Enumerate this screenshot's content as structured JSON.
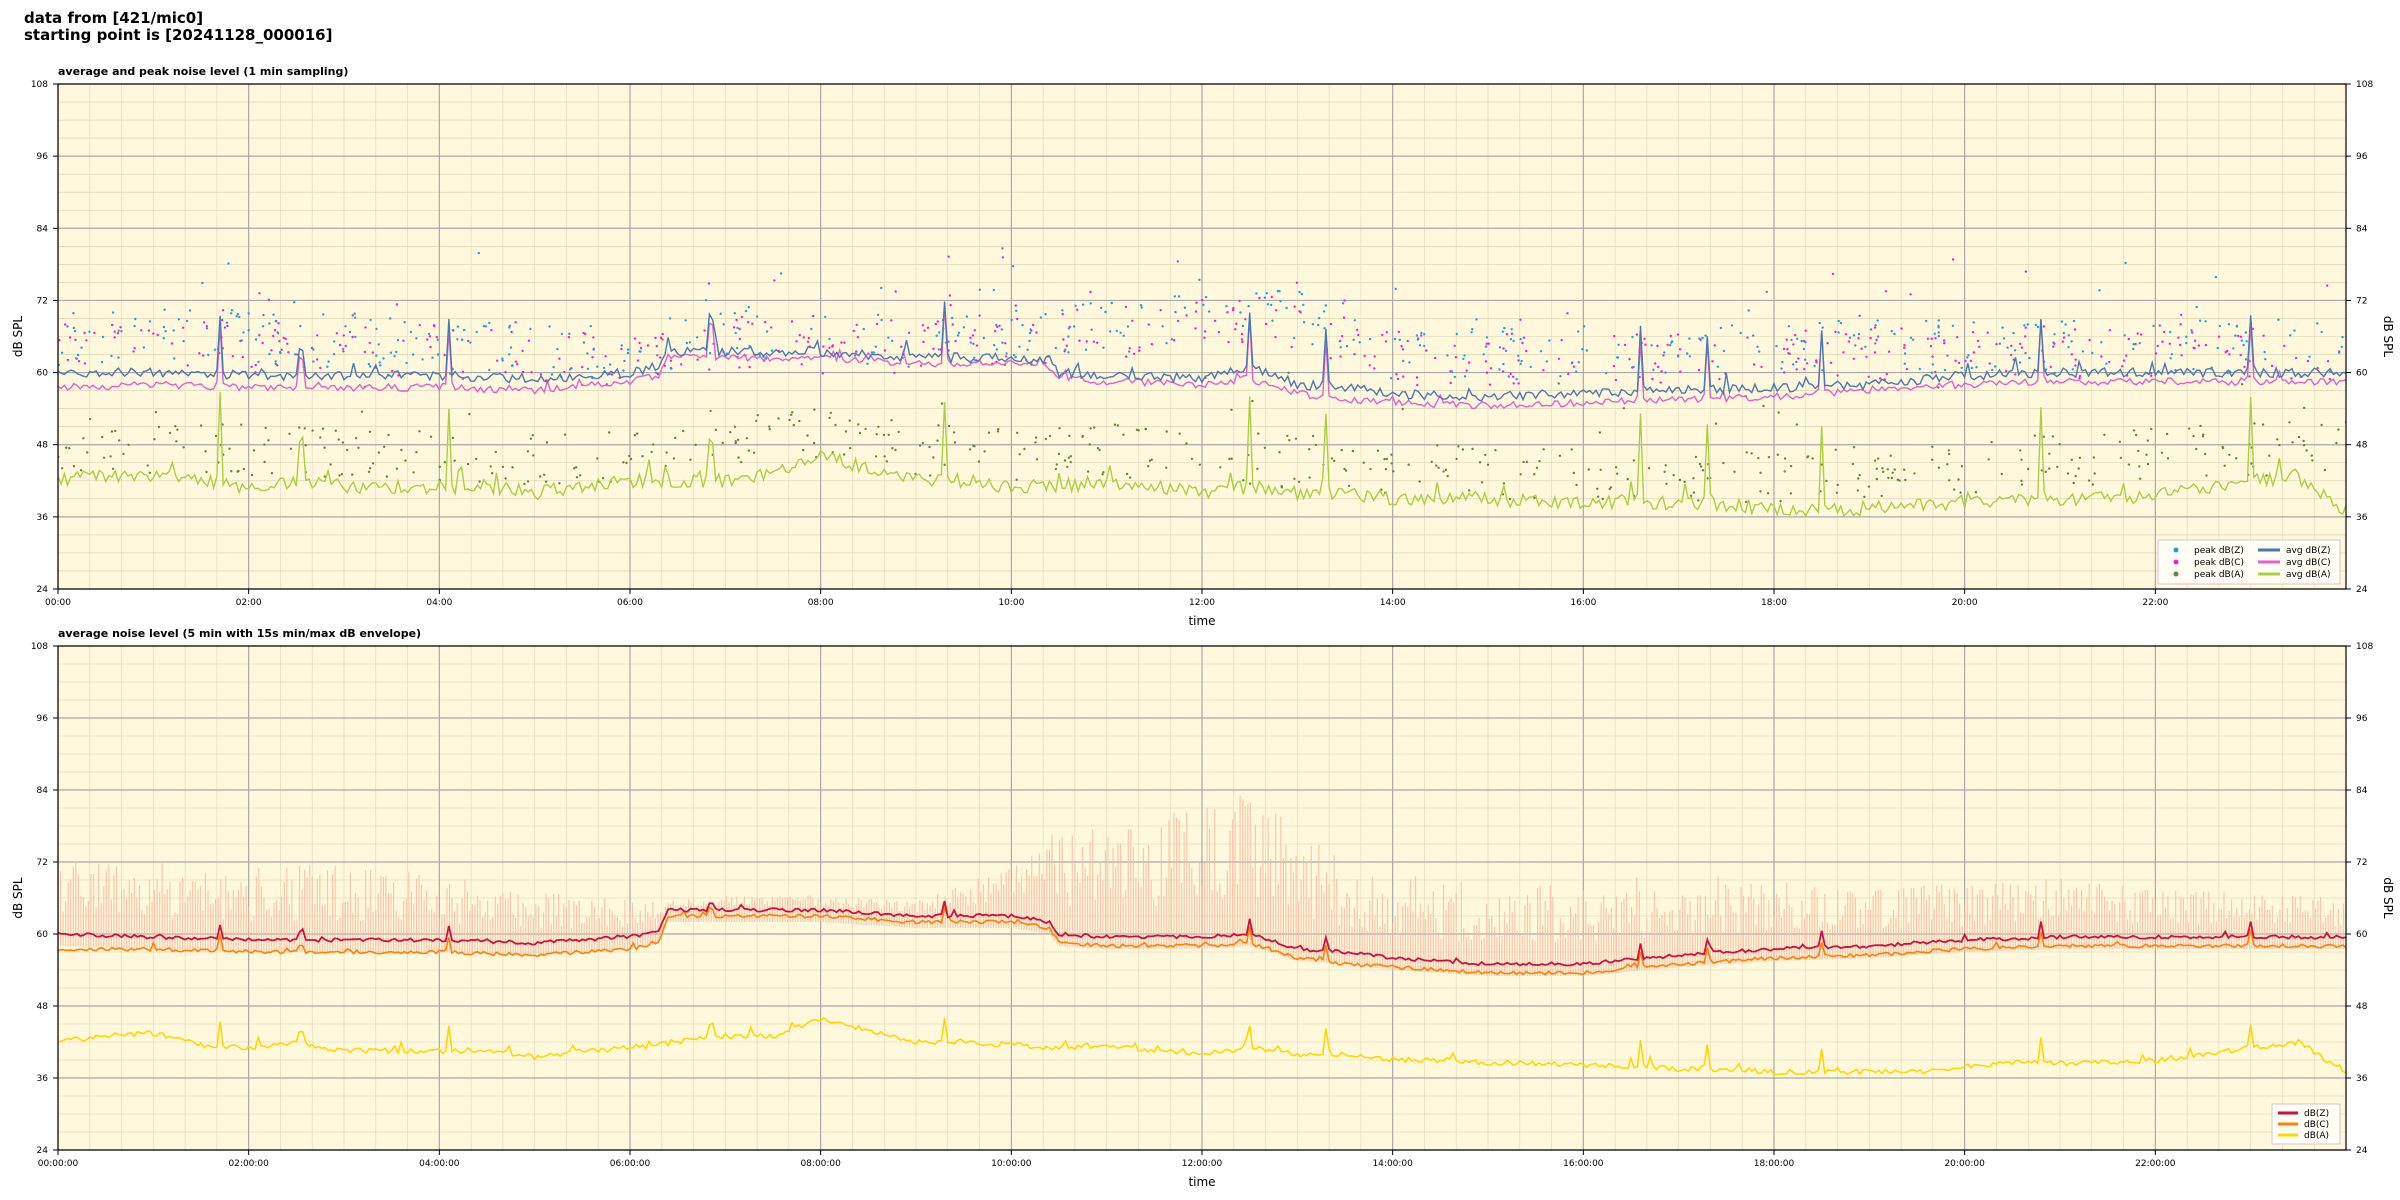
{
  "header": {
    "line1": "data from [421/mic0]",
    "line2": "starting point is [20241128_000016]"
  },
  "colors": {
    "background": "#fff8dc",
    "peak_z": "#1f9fdf",
    "peak_c": "#ee22cc",
    "peak_a": "#5c8a3a",
    "avg_z": "#4a78b0",
    "avg_c": "#e060d0",
    "avg_a": "#a8d040",
    "env_z": "#cc1040",
    "env_c": "#ff8000",
    "env_a": "#ffd700",
    "envelope_fill": "#f4b8a0"
  },
  "chart_data": [
    {
      "type": "line",
      "title": "average and peak noise level (1 min sampling)",
      "xlabel": "time",
      "ylabel": "dB SPL",
      "ylabel_right": "dB SPL",
      "xlim": [
        "00:00",
        "24:00"
      ],
      "ylim": [
        24,
        108
      ],
      "yticks": [
        24,
        36,
        48,
        60,
        72,
        84,
        96,
        108
      ],
      "xticks": [
        "00:00",
        "02:00",
        "04:00",
        "06:00",
        "08:00",
        "10:00",
        "12:00",
        "14:00",
        "16:00",
        "18:00",
        "20:00",
        "22:00"
      ],
      "grid": true,
      "legend_position": "bottom-right",
      "legend": [
        "peak dB(Z)",
        "peak dB(C)",
        "peak dB(A)",
        "avg dB(Z)",
        "avg dB(C)",
        "avg dB(A)"
      ],
      "series": [
        {
          "name": "avg dB(Z)",
          "x_hours": [
            0,
            1,
            2,
            3,
            4,
            5,
            6,
            6.3,
            6.4,
            7,
            8,
            9,
            10,
            10.4,
            10.5,
            11,
            12,
            12.5,
            13,
            13.5,
            14,
            15,
            16,
            17,
            18,
            19,
            20,
            21,
            22,
            23,
            24
          ],
          "values": [
            60,
            60,
            59.5,
            59.5,
            59.5,
            59,
            60,
            61,
            63.5,
            63.5,
            63.5,
            62.5,
            62.5,
            62,
            60,
            59.5,
            59,
            61,
            58,
            57.5,
            56.5,
            56,
            56.5,
            57,
            57.5,
            58,
            59.5,
            60,
            60,
            60,
            60
          ]
        },
        {
          "name": "avg dB(C)",
          "x_hours": [
            0,
            1,
            2,
            3,
            4,
            5,
            6,
            6.3,
            6.4,
            7,
            8,
            9,
            10,
            10.4,
            10.5,
            11,
            12,
            12.5,
            13,
            13.5,
            14,
            15,
            16,
            17,
            18,
            19,
            20,
            21,
            22,
            23,
            24
          ],
          "values": [
            57.5,
            58,
            57.5,
            57.5,
            57.5,
            57,
            58.5,
            59.5,
            62.5,
            62.5,
            62.5,
            61.5,
            61.5,
            61,
            59,
            58.5,
            58,
            59,
            56.5,
            55.5,
            55,
            54.5,
            55,
            55.5,
            56,
            57,
            58,
            58.5,
            58.5,
            58.5,
            58.5
          ]
        },
        {
          "name": "avg dB(A)",
          "x_hours": [
            0,
            0.5,
            1,
            1.5,
            2,
            2.5,
            3,
            3.5,
            4,
            4.5,
            5,
            5.5,
            6,
            6.5,
            7,
            7.5,
            8,
            8.5,
            9,
            9.5,
            10,
            10.5,
            11,
            11.5,
            12,
            12.5,
            13,
            13.5,
            14,
            14.5,
            15,
            15.5,
            16,
            16.5,
            17,
            17.5,
            18,
            18.5,
            19,
            19.5,
            20,
            20.5,
            21,
            21.5,
            22,
            22.5,
            23,
            23.5,
            24
          ],
          "values": [
            42,
            43,
            43,
            42,
            41,
            42,
            41,
            41,
            41,
            41,
            40,
            41,
            42,
            42,
            42,
            43,
            46,
            44,
            42,
            42,
            41,
            41,
            42,
            41,
            40,
            41,
            40,
            40,
            39,
            39,
            39,
            38.5,
            38.5,
            38.5,
            38,
            38,
            37.5,
            37,
            37.5,
            38,
            38.5,
            39,
            39,
            39,
            39.5,
            41,
            42,
            42.5,
            37
          ]
        },
        {
          "name": "peak dB(Z)",
          "x_hours": [
            0,
            1,
            2,
            3,
            4,
            5,
            6,
            7,
            8,
            9,
            10,
            11,
            12,
            13,
            14,
            15,
            16,
            17,
            18,
            19,
            20,
            21,
            22,
            23
          ],
          "values": [
            64,
            65,
            64,
            64,
            63,
            62,
            62,
            65,
            64,
            64,
            65,
            66,
            68,
            68,
            62,
            62,
            62,
            62,
            62,
            63,
            63,
            63,
            63,
            63
          ]
        },
        {
          "name": "peak dB(C)",
          "x_hours": [
            0,
            1,
            2,
            3,
            4,
            5,
            6,
            7,
            8,
            9,
            10,
            11,
            12,
            13,
            14,
            15,
            16,
            17,
            18,
            19,
            20,
            21,
            22,
            23
          ],
          "values": [
            63,
            64,
            63,
            63,
            62,
            61,
            61,
            64,
            63,
            63,
            64,
            65,
            67,
            67,
            61,
            61,
            61,
            61,
            61,
            62,
            62,
            62,
            62,
            62
          ]
        },
        {
          "name": "peak dB(A)",
          "x_hours": [
            0,
            1,
            2,
            3,
            4,
            5,
            6,
            7,
            8,
            9,
            10,
            11,
            12,
            13,
            14,
            15,
            16,
            17,
            18,
            19,
            20,
            21,
            22,
            23
          ],
          "values": [
            47,
            46,
            46,
            45,
            45,
            44,
            45,
            47,
            49,
            46,
            45,
            46,
            44,
            44,
            43,
            42,
            42,
            42,
            41,
            42,
            43,
            44,
            45,
            46
          ]
        }
      ]
    },
    {
      "type": "line",
      "title": "average noise level (5 min with 15s min/max dB envelope)",
      "xlabel": "time",
      "ylabel": "dB SPL",
      "ylabel_right": "dB SPL",
      "xlim": [
        "00:00:00",
        "24:00:00"
      ],
      "ylim": [
        24,
        108
      ],
      "yticks": [
        24,
        36,
        48,
        60,
        72,
        84,
        96,
        108
      ],
      "xticks": [
        "00:00:00",
        "02:00:00",
        "04:00:00",
        "06:00:00",
        "08:00:00",
        "10:00:00",
        "12:00:00",
        "14:00:00",
        "16:00:00",
        "18:00:00",
        "20:00:00",
        "22:00:00"
      ],
      "grid": true,
      "legend_position": "bottom-right",
      "legend": [
        "dB(Z)",
        "dB(C)",
        "dB(A)"
      ],
      "series": [
        {
          "name": "dB(Z)",
          "x_hours": [
            0,
            1,
            2,
            3,
            4,
            5,
            6,
            6.3,
            6.4,
            7,
            8,
            9,
            10,
            10.4,
            10.5,
            11,
            12,
            12.5,
            13,
            13.5,
            14,
            15,
            16,
            17,
            18,
            19,
            20,
            21,
            22,
            23,
            24
          ],
          "values": [
            60,
            59.5,
            59,
            59,
            59,
            58.5,
            59.5,
            60.5,
            64,
            64,
            64,
            63,
            63,
            62,
            60,
            59.5,
            59.5,
            60,
            57.5,
            57,
            56,
            55,
            55,
            56.5,
            57.5,
            58,
            59,
            59.5,
            59.5,
            59.5,
            59.5
          ]
        },
        {
          "name": "dB(C)",
          "x_hours": [
            0,
            1,
            2,
            3,
            4,
            5,
            6,
            6.3,
            6.4,
            7,
            8,
            9,
            10,
            10.4,
            10.5,
            11,
            12,
            12.5,
            13,
            13.5,
            14,
            15,
            16,
            17,
            18,
            19,
            20,
            21,
            22,
            23,
            24
          ],
          "values": [
            57.5,
            57.5,
            57,
            57,
            57,
            56.5,
            57.5,
            58.5,
            63,
            63,
            63,
            62,
            62,
            61,
            58.5,
            58,
            58,
            58.5,
            56,
            55,
            54.5,
            53.5,
            53.5,
            55,
            56,
            56.5,
            57.5,
            58,
            58,
            58,
            58
          ]
        },
        {
          "name": "dB(A)",
          "x_hours": [
            0,
            0.5,
            1,
            1.5,
            2,
            2.5,
            3,
            3.5,
            4,
            4.5,
            5,
            5.5,
            6,
            6.5,
            7,
            7.5,
            8,
            8.5,
            9,
            9.5,
            10,
            10.5,
            11,
            11.5,
            12,
            12.5,
            13,
            13.5,
            14,
            14.5,
            15,
            15.5,
            16,
            16.5,
            17,
            17.5,
            18,
            18.5,
            19,
            19.5,
            20,
            20.5,
            21,
            21.5,
            22,
            22.5,
            23,
            23.5,
            24
          ],
          "values": [
            42,
            43,
            43.5,
            41.5,
            41,
            42,
            40.5,
            40.5,
            40.5,
            40.5,
            39.5,
            40.5,
            41,
            42,
            43,
            43,
            46,
            44,
            42,
            42,
            41.5,
            41,
            41.5,
            40.5,
            40,
            41,
            40,
            40,
            39,
            39,
            38.5,
            38.5,
            38,
            38,
            37.5,
            37.5,
            37,
            37,
            37,
            37,
            38,
            38.5,
            38.5,
            38.5,
            39,
            40,
            41,
            42,
            37
          ]
        },
        {
          "name": "envelope max",
          "x_hours": [
            0,
            1,
            2,
            3,
            4,
            5,
            6,
            7,
            8,
            9,
            10,
            10.5,
            11,
            12,
            12.5,
            13,
            14,
            15,
            16,
            17,
            18,
            19,
            20,
            21,
            22,
            23,
            24
          ],
          "values": [
            70,
            70,
            69,
            70,
            68,
            66,
            65,
            66,
            66,
            65,
            70,
            76,
            74,
            78,
            80,
            74,
            68,
            66,
            66,
            68,
            67,
            66,
            67,
            68,
            66,
            66,
            65
          ]
        }
      ]
    }
  ]
}
